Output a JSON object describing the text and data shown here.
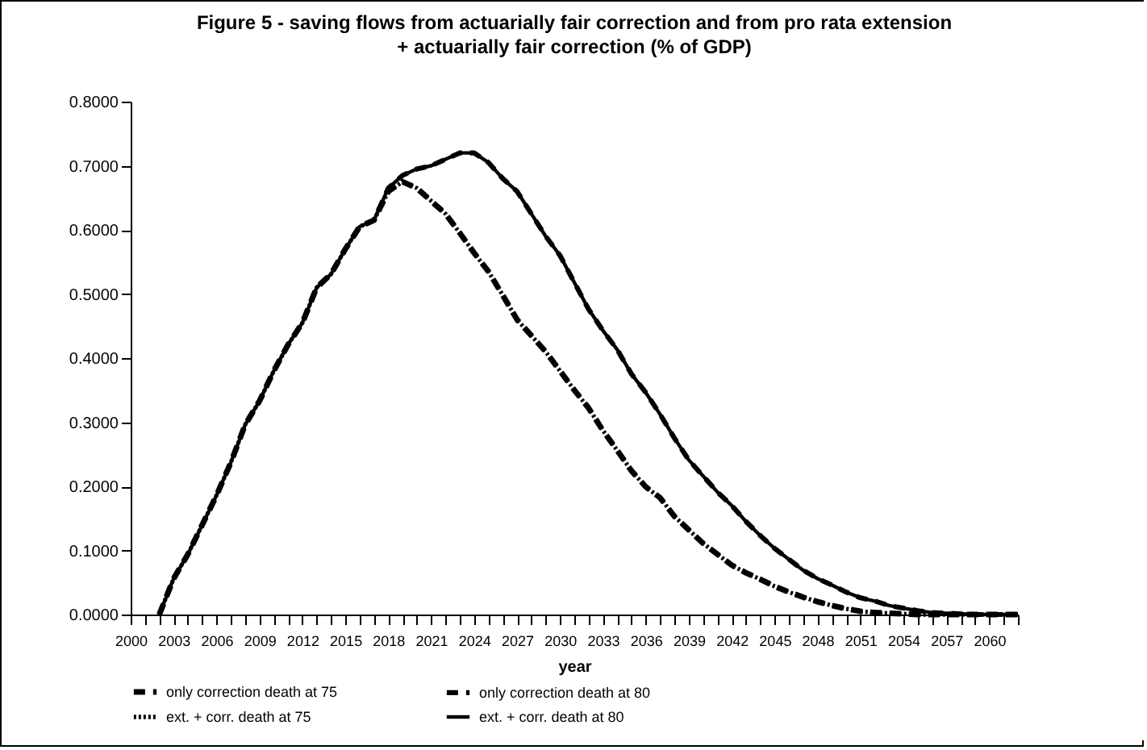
{
  "chart_data": {
    "type": "line",
    "title": "Figure 5 -  saving flows from actuarially fair correction and from pro rata extension",
    "subtitle": "+ actuarially fair correction (% of GDP)",
    "xlabel": "year",
    "x": [
      2002,
      2003,
      2004,
      2005,
      2006,
      2007,
      2008,
      2009,
      2010,
      2011,
      2012,
      2013,
      2014,
      2015,
      2016,
      2017,
      2018,
      2019,
      2020,
      2021,
      2022,
      2023,
      2024,
      2025,
      2026,
      2027,
      2028,
      2029,
      2030,
      2031,
      2032,
      2033,
      2034,
      2035,
      2036,
      2037,
      2038,
      2039,
      2040,
      2041,
      2042,
      2043,
      2044,
      2045,
      2046,
      2047,
      2048,
      2049,
      2050,
      2051,
      2052,
      2053,
      2054,
      2055,
      2056,
      2057,
      2058,
      2059,
      2060,
      2061,
      2062
    ],
    "series": [
      {
        "name": "only correction death at 75",
        "color": "#000000",
        "line_style": "dashed",
        "values": [
          0,
          0.056,
          0.094,
          0.14,
          0.186,
          0.237,
          0.296,
          0.333,
          0.38,
          0.421,
          0.455,
          0.51,
          0.531,
          0.57,
          0.605,
          0.615,
          0.66,
          0.675,
          0.665,
          0.645,
          0.625,
          0.595,
          0.564,
          0.535,
          0.498,
          0.46,
          0.435,
          0.41,
          0.38,
          0.35,
          0.322,
          0.287,
          0.256,
          0.224,
          0.199,
          0.182,
          0.153,
          0.132,
          0.111,
          0.094,
          0.077,
          0.065,
          0.055,
          0.044,
          0.035,
          0.027,
          0.02,
          0.014,
          0.009,
          0.005,
          0.003,
          0.002,
          0.001,
          0,
          0,
          0,
          0,
          0,
          0,
          0,
          0
        ]
      },
      {
        "name": "only correction death at 80",
        "color": "#000000",
        "line_style": "dashed",
        "values": [
          0,
          0.056,
          0.094,
          0.14,
          0.186,
          0.237,
          0.296,
          0.333,
          0.38,
          0.421,
          0.455,
          0.51,
          0.531,
          0.57,
          0.605,
          0.615,
          0.665,
          0.685,
          0.695,
          0.7,
          0.71,
          0.72,
          0.72,
          0.705,
          0.68,
          0.66,
          0.625,
          0.59,
          0.56,
          0.518,
          0.476,
          0.443,
          0.413,
          0.375,
          0.346,
          0.312,
          0.275,
          0.241,
          0.216,
          0.191,
          0.17,
          0.145,
          0.123,
          0.103,
          0.086,
          0.069,
          0.056,
          0.046,
          0.035,
          0.026,
          0.021,
          0.014,
          0.01,
          0.006,
          0.003,
          0.002,
          0.001,
          0,
          0,
          0,
          0
        ]
      },
      {
        "name": "ext. + corr. death at 75",
        "color": "#000000",
        "line_style": "dotted",
        "values": [
          0,
          0.056,
          0.094,
          0.14,
          0.186,
          0.237,
          0.296,
          0.333,
          0.38,
          0.421,
          0.455,
          0.51,
          0.531,
          0.57,
          0.605,
          0.615,
          0.66,
          0.675,
          0.665,
          0.645,
          0.625,
          0.595,
          0.564,
          0.535,
          0.498,
          0.46,
          0.435,
          0.41,
          0.38,
          0.35,
          0.322,
          0.287,
          0.256,
          0.224,
          0.199,
          0.182,
          0.153,
          0.132,
          0.111,
          0.094,
          0.077,
          0.065,
          0.055,
          0.044,
          0.035,
          0.027,
          0.02,
          0.014,
          0.009,
          0.005,
          0.003,
          0.002,
          0.001,
          0,
          0,
          0,
          0,
          0,
          0,
          0,
          0
        ]
      },
      {
        "name": "ext. + corr. death at 80",
        "color": "#000000",
        "line_style": "solid",
        "values": [
          0,
          0.056,
          0.094,
          0.14,
          0.186,
          0.237,
          0.296,
          0.333,
          0.38,
          0.421,
          0.455,
          0.51,
          0.531,
          0.57,
          0.605,
          0.615,
          0.665,
          0.685,
          0.695,
          0.7,
          0.71,
          0.72,
          0.72,
          0.705,
          0.68,
          0.66,
          0.625,
          0.59,
          0.56,
          0.518,
          0.476,
          0.443,
          0.413,
          0.375,
          0.346,
          0.312,
          0.275,
          0.241,
          0.216,
          0.191,
          0.17,
          0.145,
          0.123,
          0.103,
          0.086,
          0.069,
          0.056,
          0.046,
          0.035,
          0.026,
          0.021,
          0.014,
          0.01,
          0.006,
          0.003,
          0.002,
          0.001,
          0,
          0,
          0,
          0
        ]
      }
    ],
    "xlim": [
      2000,
      2062
    ],
    "xticks": [
      2000,
      {
        "value": 2001,
        "label": null
      },
      {
        "value": 2002,
        "label": null
      },
      2003,
      {
        "value": 2004,
        "label": null
      },
      {
        "value": 2005,
        "label": null
      },
      2006,
      {
        "value": 2007,
        "label": null
      },
      {
        "value": 2008,
        "label": null
      },
      2009,
      {
        "value": 2010,
        "label": null
      },
      {
        "value": 2011,
        "label": null
      },
      2012,
      {
        "value": 2013,
        "label": null
      },
      {
        "value": 2014,
        "label": null
      },
      2015,
      {
        "value": 2016,
        "label": null
      },
      {
        "value": 2017,
        "label": null
      },
      2018,
      {
        "value": 2019,
        "label": null
      },
      {
        "value": 2020,
        "label": null
      },
      2021,
      {
        "value": 2022,
        "label": null
      },
      {
        "value": 2023,
        "label": null
      },
      2024,
      {
        "value": 2025,
        "label": null
      },
      {
        "value": 2026,
        "label": null
      },
      2027,
      {
        "value": 2028,
        "label": null
      },
      {
        "value": 2029,
        "label": null
      },
      2030,
      {
        "value": 2031,
        "label": null
      },
      {
        "value": 2032,
        "label": null
      },
      2033,
      {
        "value": 2034,
        "label": null
      },
      {
        "value": 2035,
        "label": null
      },
      2036,
      {
        "value": 2037,
        "label": null
      },
      {
        "value": 2038,
        "label": null
      },
      2039,
      {
        "value": 2040,
        "label": null
      },
      {
        "value": 2041,
        "label": null
      },
      2042,
      {
        "value": 2043,
        "label": null
      },
      {
        "value": 2044,
        "label": null
      },
      2045,
      {
        "value": 2046,
        "label": null
      },
      {
        "value": 2047,
        "label": null
      },
      2048,
      {
        "value": 2049,
        "label": null
      },
      {
        "value": 2050,
        "label": null
      },
      2051,
      {
        "value": 2052,
        "label": null
      },
      {
        "value": 2053,
        "label": null
      },
      2054,
      {
        "value": 2055,
        "label": null
      },
      {
        "value": 2056,
        "label": null
      },
      2057,
      {
        "value": 2058,
        "label": null
      },
      {
        "value": 2059,
        "label": null
      },
      2060,
      {
        "value": 2061,
        "label": null
      },
      {
        "value": 2062,
        "label": null
      }
    ],
    "ylim": [
      0,
      0.8
    ],
    "yticks": [
      {
        "value": 0,
        "label": "0.0000"
      },
      {
        "value": 0.1,
        "label": "0.1000"
      },
      {
        "value": 0.2,
        "label": "0.2000"
      },
      {
        "value": 0.3,
        "label": "0.3000"
      },
      {
        "value": 0.4,
        "label": "0.4000"
      },
      {
        "value": 0.5,
        "label": "0.5000"
      },
      {
        "value": 0.6,
        "label": "0.6000"
      },
      {
        "value": 0.7,
        "label": "0.7000"
      },
      {
        "value": 0.8,
        "label": "0.8000"
      }
    ],
    "grid": false,
    "legend": "bottom",
    "marker": "none"
  }
}
